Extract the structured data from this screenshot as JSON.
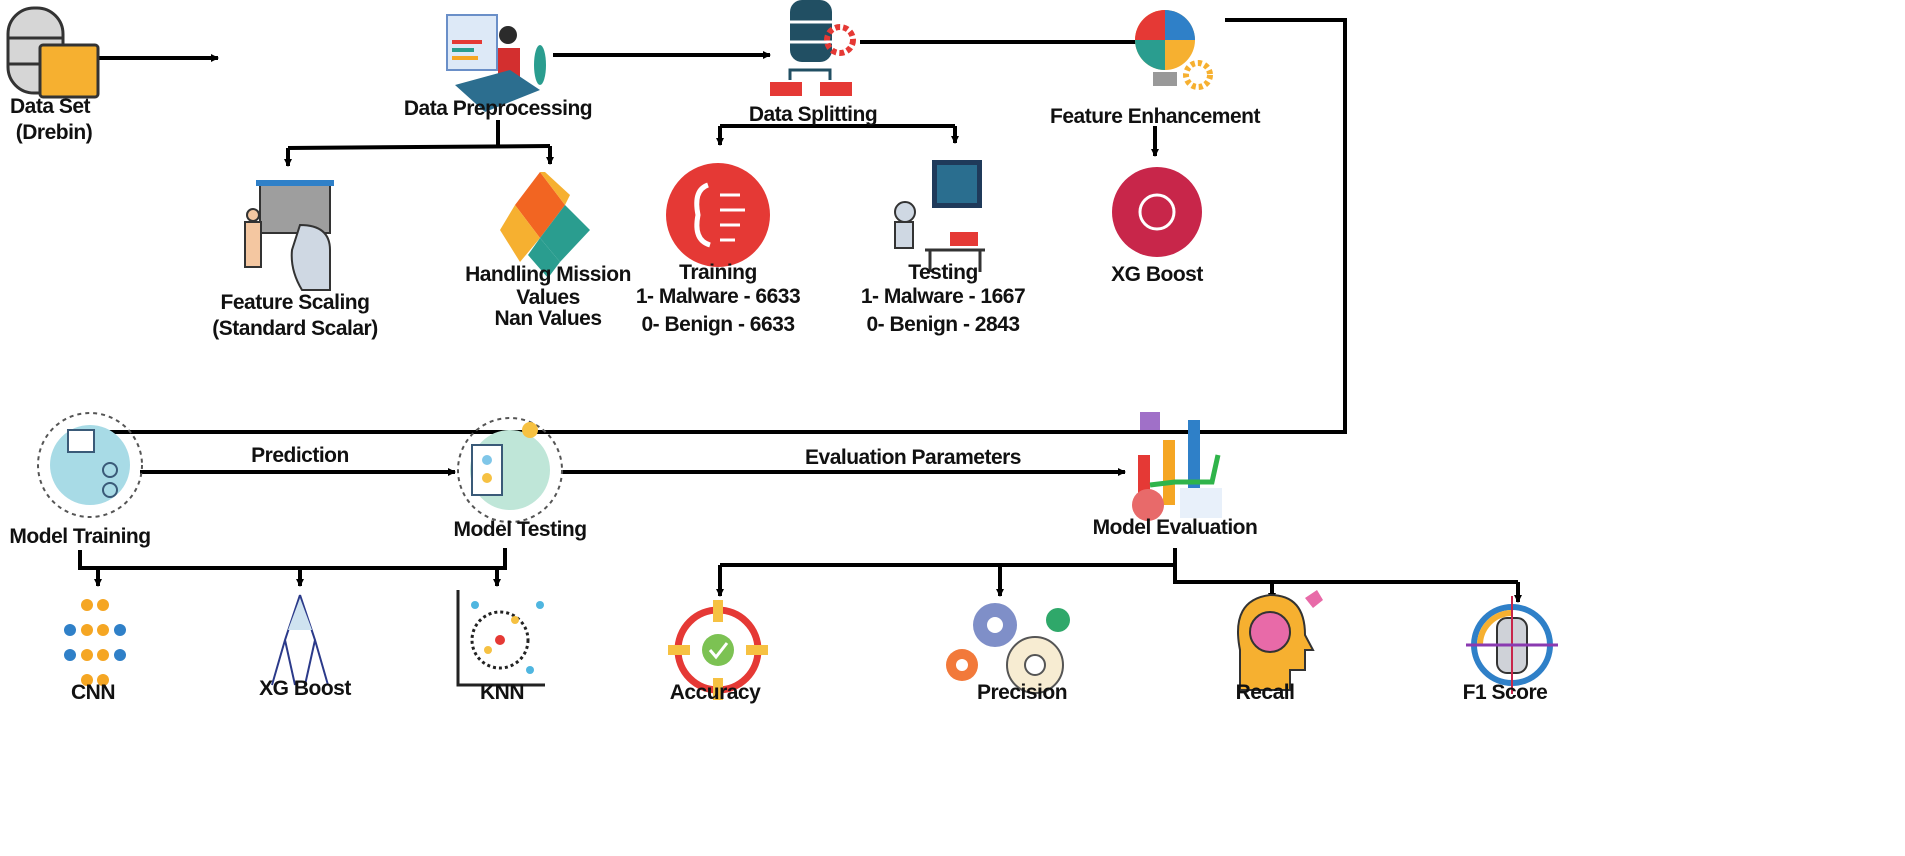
{
  "nodes": {
    "dataset": {
      "title": "Data Set",
      "subtitle": "(Drebin)",
      "icon": "database-folder-icon"
    },
    "preprocessing": {
      "title": "Data Preprocessing",
      "icon": "person-dashboard-icon"
    },
    "splitting": {
      "title": "Data Splitting",
      "icon": "database-gear-icon"
    },
    "enhancement": {
      "title": "Feature Enhancement",
      "icon": "puzzle-bulb-gears-icon"
    },
    "scaling": {
      "title": "Feature Scaling",
      "subtitle": "(Standard Scalar)",
      "icon": "teacher-ai-head-icon"
    },
    "missing": {
      "title": "Handling Mission",
      "line2": "Values",
      "line3": "Nan Values",
      "icon": "puzzle-icon"
    },
    "training": {
      "title": "Training",
      "line2": "1- Malware - 6633",
      "line3": "0- Benign - 6633",
      "icon": "brain-circuit-icon"
    },
    "testing": {
      "title": "Testing",
      "line2": "1- Malware - 1667",
      "line3": "0- Benign - 2843",
      "icon": "robot-desk-icon"
    },
    "xgboost_fe": {
      "title": "XG Boost",
      "icon": "head-bulb-icon"
    },
    "model_training": {
      "title": "Model Training",
      "icon": "ml-training-icon"
    },
    "model_testing": {
      "title": "Model Testing",
      "icon": "ml-testing-icon"
    },
    "model_evaluation": {
      "title": "Model Evaluation",
      "icon": "bar-chart-icon"
    },
    "cnn": {
      "title": "CNN",
      "icon": "neural-network-icon"
    },
    "xgboost": {
      "title": "XG Boost",
      "icon": "tree-icon"
    },
    "knn": {
      "title": "KNN",
      "icon": "cluster-icon"
    },
    "accuracy": {
      "title": "Accuracy",
      "icon": "target-check-icon"
    },
    "precision": {
      "title": "Precision",
      "icon": "gears-icon"
    },
    "recall": {
      "title": "Recall",
      "icon": "brain-head-icon"
    },
    "f1": {
      "title": "F1 Score",
      "icon": "database-target-icon"
    }
  },
  "edges": {
    "prediction": "Prediction",
    "evaluation_parameters": "Evaluation Parameters"
  },
  "colors": {
    "line": "#000000",
    "red": "#e53935",
    "crimson": "#c8264a",
    "orange": "#f5a623",
    "teal": "#2a9d8f",
    "blue": "#2f80c8"
  }
}
